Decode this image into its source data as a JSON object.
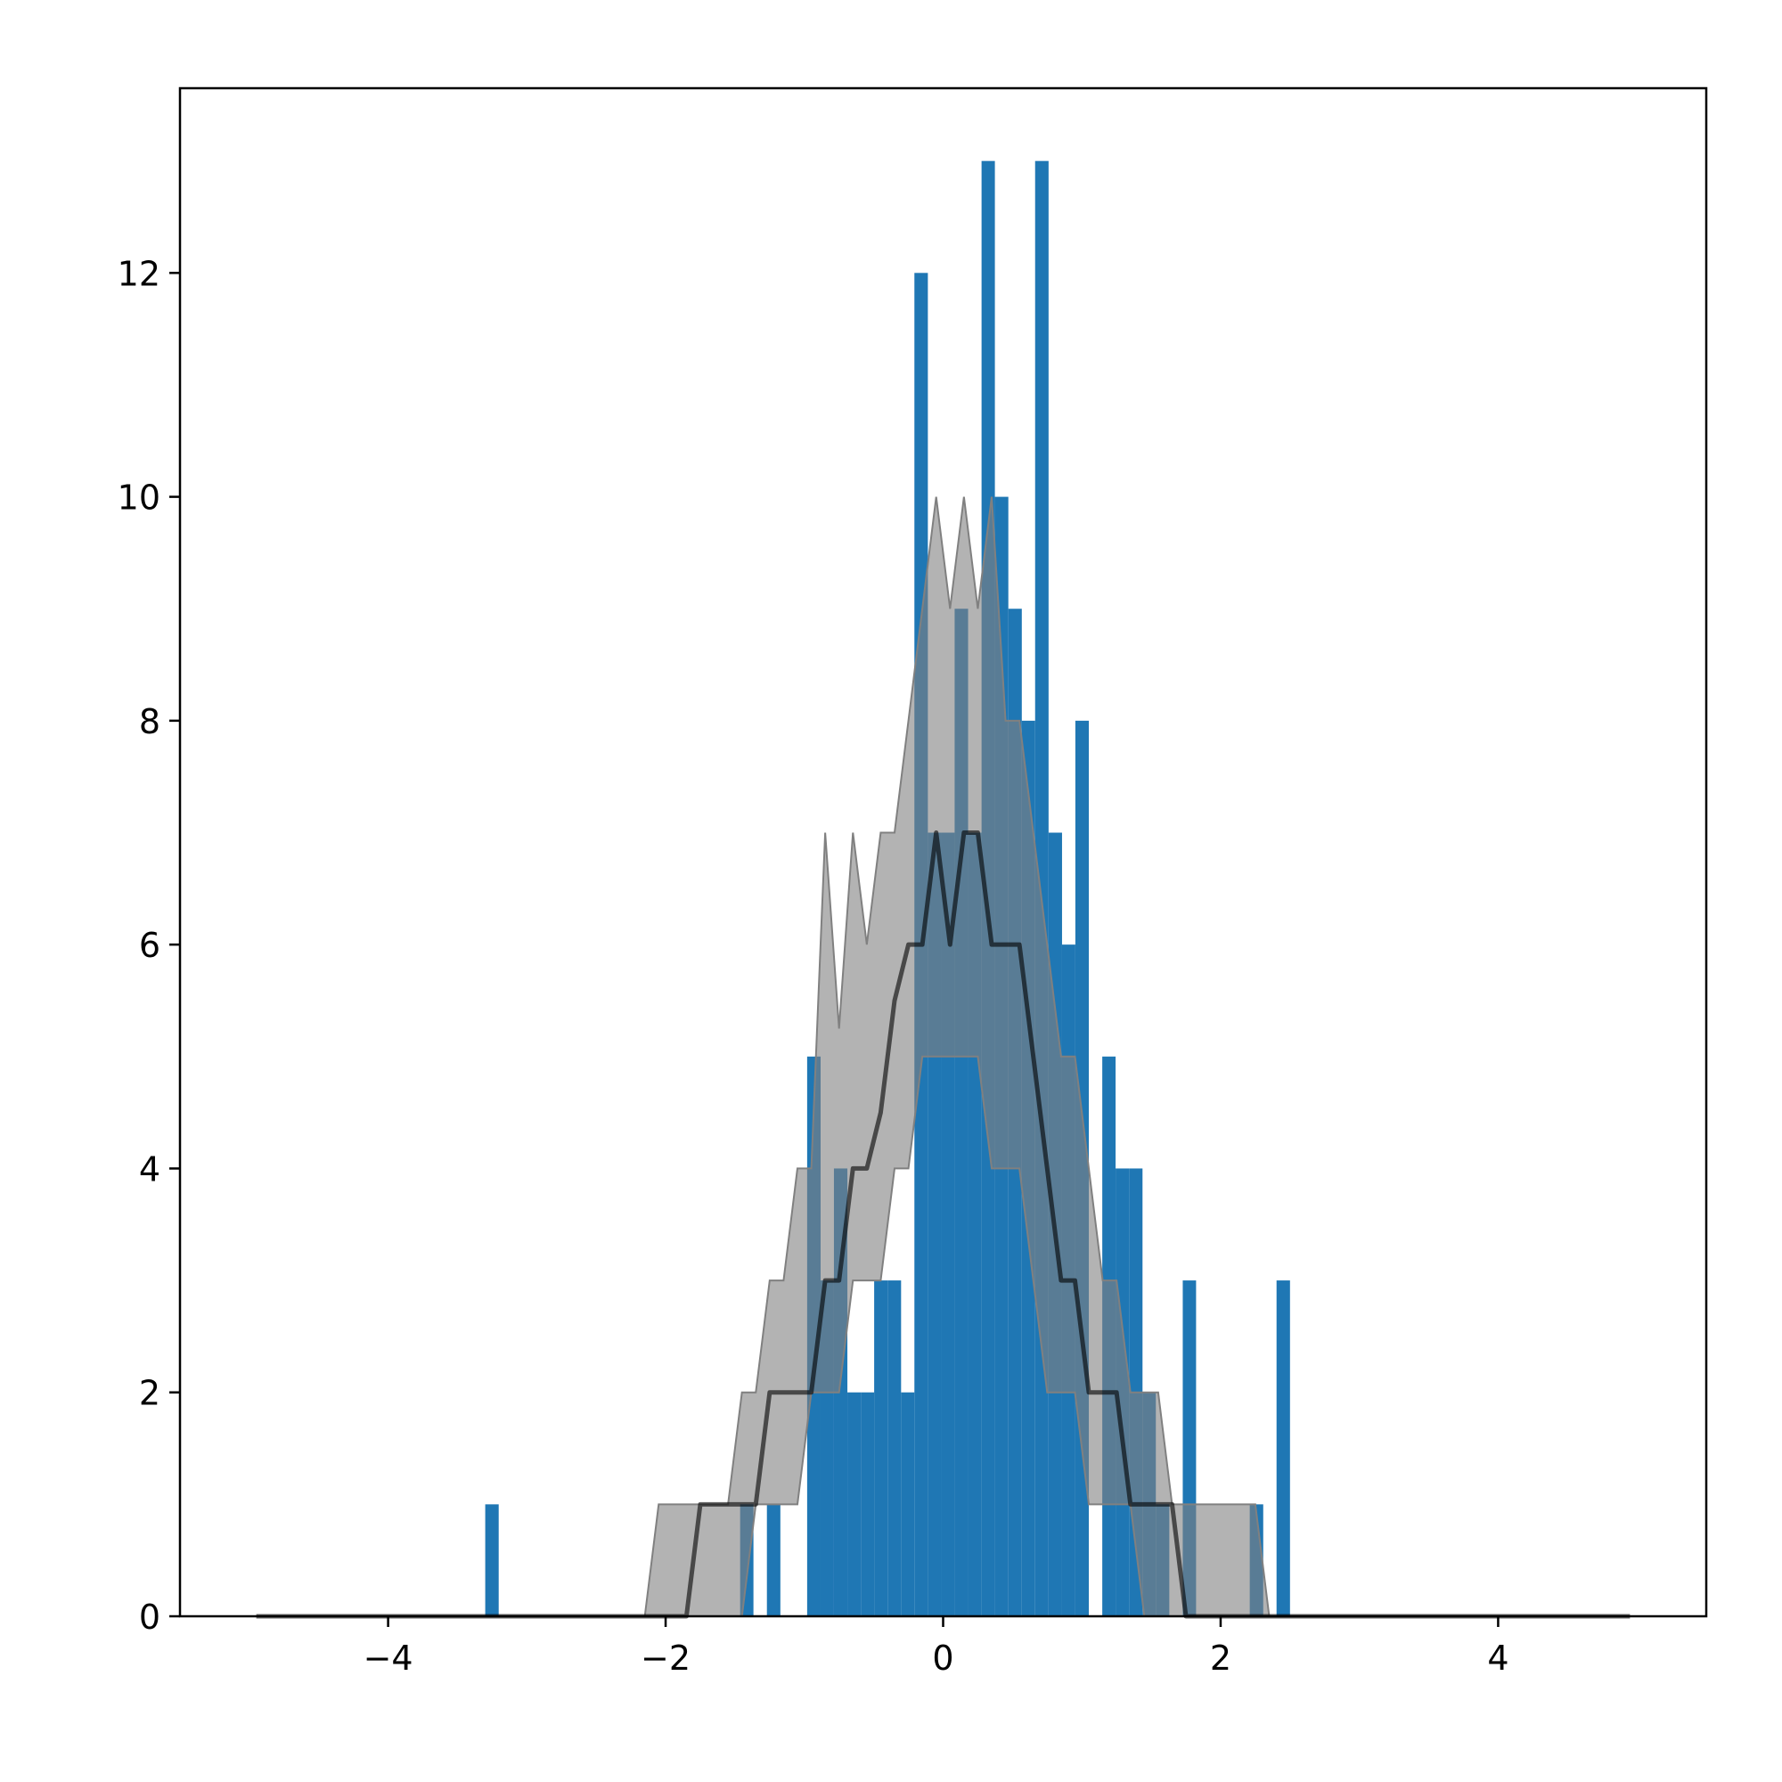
{
  "chart_data": {
    "type": "histogram",
    "bins": [
      -3.3,
      -3.203,
      -3.107,
      -3.01,
      -2.913,
      -2.817,
      -2.72,
      -2.623,
      -2.527,
      -2.43,
      -2.333,
      -2.237,
      -2.14,
      -2.043,
      -1.947,
      -1.85,
      -1.753,
      -1.657,
      -1.56,
      -1.463,
      -1.367,
      -1.27,
      -1.173,
      -1.077,
      -0.98,
      -0.883,
      -0.787,
      -0.69,
      -0.593,
      -0.497,
      -0.4,
      -0.303,
      -0.207,
      -0.11,
      -0.013,
      0.083,
      0.18,
      0.277,
      0.373,
      0.47,
      0.567,
      0.663,
      0.76,
      0.857,
      0.953,
      1.05,
      1.147,
      1.243,
      1.34,
      1.437,
      1.533,
      1.63,
      1.727,
      1.823,
      1.92,
      2.017,
      2.113,
      2.21,
      2.307,
      2.403,
      2.5
    ],
    "values": [
      1,
      0,
      0,
      0,
      0,
      0,
      0,
      0,
      0,
      0,
      0,
      0,
      0,
      0,
      0,
      0,
      0,
      0,
      0,
      1,
      0,
      1,
      0,
      0,
      5,
      3,
      4,
      2,
      2,
      3,
      3,
      2,
      12,
      7,
      7,
      9,
      7,
      13,
      10,
      9,
      8,
      13,
      7,
      6,
      8,
      0,
      5,
      4,
      4,
      2,
      1,
      0,
      3,
      0,
      0,
      0,
      0,
      1,
      0,
      3
    ],
    "color": "#1f77b4",
    "band": {
      "x": [
        -4.95,
        -2.15,
        -2.05,
        -1.95,
        -1.85,
        -1.75,
        -1.65,
        -1.55,
        -1.45,
        -1.35,
        -1.25,
        -1.15,
        -1.05,
        -0.95,
        -0.85,
        -0.75,
        -0.65,
        -0.55,
        -0.45,
        -0.35,
        -0.25,
        -0.15,
        -0.05,
        0.05,
        0.15,
        0.25,
        0.35,
        0.45,
        0.55,
        0.65,
        0.75,
        0.85,
        0.95,
        1.05,
        1.15,
        1.25,
        1.35,
        1.45,
        1.55,
        1.65,
        1.75,
        1.85,
        1.95,
        2.05,
        2.15,
        2.25,
        2.35,
        4.95
      ],
      "upper": [
        0,
        0,
        1,
        1,
        1,
        1,
        1,
        1,
        2,
        2,
        3,
        3,
        4,
        4,
        7,
        5.25,
        7,
        6,
        7,
        7,
        8,
        9,
        10,
        9,
        10,
        9,
        10,
        8,
        8,
        7,
        6,
        5,
        5,
        4,
        3,
        3,
        2,
        2,
        2,
        1,
        1,
        1,
        1,
        1,
        1,
        1,
        0,
        0
      ],
      "lower": [
        0,
        0,
        0,
        0,
        0,
        0,
        0,
        0,
        0,
        1,
        1,
        1,
        1,
        2,
        2,
        2,
        3,
        3,
        3,
        4,
        4,
        5,
        5,
        5,
        5,
        5,
        4,
        4,
        4,
        3,
        2,
        2,
        2,
        1,
        1,
        1,
        1,
        0,
        0,
        0,
        0,
        0,
        0,
        0,
        0,
        0,
        0,
        0
      ],
      "color": "#808080",
      "opacity": 0.6
    },
    "line": {
      "values": [
        0,
        0,
        0,
        0,
        0,
        1,
        1,
        1,
        1,
        1,
        2,
        2,
        2,
        2,
        3,
        3,
        4,
        4,
        4.5,
        5.5,
        6,
        6,
        7,
        6,
        7,
        7,
        6,
        6,
        6,
        5,
        4,
        3,
        3,
        2,
        2,
        2,
        1,
        1,
        1,
        1,
        0,
        0,
        0,
        0,
        0,
        0,
        0,
        0
      ],
      "color": "#000000",
      "opacity": 0.6
    },
    "xlim": [
      -5.5,
      5.5
    ],
    "ylim": [
      0,
      13.65
    ],
    "xticks": [
      {
        "value": -4,
        "label": "−4"
      },
      {
        "value": -2,
        "label": "−2"
      },
      0,
      2,
      4
    ],
    "yticks": [
      0,
      2,
      4,
      6,
      8,
      10,
      12
    ]
  }
}
